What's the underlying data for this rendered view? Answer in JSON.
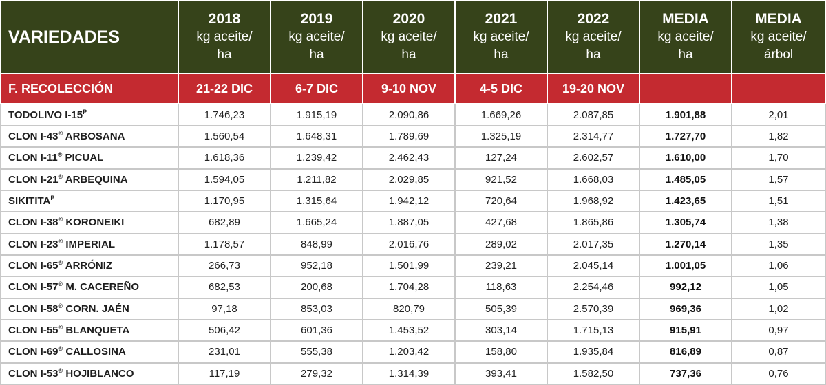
{
  "header": {
    "variety": "VARIEDADES",
    "years": [
      {
        "year": "2018",
        "unit_line1": "kg aceite/",
        "unit_line2": "ha"
      },
      {
        "year": "2019",
        "unit_line1": "kg aceite/",
        "unit_line2": "ha"
      },
      {
        "year": "2020",
        "unit_line1": "kg aceite/",
        "unit_line2": "ha"
      },
      {
        "year": "2021",
        "unit_line1": "kg aceite/",
        "unit_line2": "ha"
      },
      {
        "year": "2022",
        "unit_line1": "kg aceite/",
        "unit_line2": "ha"
      }
    ],
    "mean_ha": {
      "title": "MEDIA",
      "unit_line1": "kg aceite/",
      "unit_line2": "ha"
    },
    "mean_tree": {
      "title": "MEDIA",
      "unit_line1": "kg aceite/",
      "unit_line2": "árbol"
    }
  },
  "harvest": {
    "label": "F. RECOLECCIÓN",
    "dates": [
      "21-22 DIC",
      "6-7 DIC",
      "9-10 NOV",
      "4-5 DIC",
      "19-20 NOV",
      "",
      ""
    ]
  },
  "colors": {
    "header_bg": "#36431a",
    "harvest_bg": "#c42a30",
    "grid": "#c8c8c8"
  },
  "rows": [
    {
      "name": "TODOLIVO I-15",
      "mark": "P",
      "suffix": "",
      "values": [
        "1.746,23",
        "1.915,19",
        "2.090,86",
        "1.669,26",
        "2.087,85"
      ],
      "mean_ha": "1.901,88",
      "mean_tree": "2,01"
    },
    {
      "name": "CLON I-43",
      "mark": "®",
      "suffix": " ARBOSANA",
      "values": [
        "1.560,54",
        "1.648,31",
        "1.789,69",
        "1.325,19",
        "2.314,77"
      ],
      "mean_ha": "1.727,70",
      "mean_tree": "1,82"
    },
    {
      "name": "CLON I-11",
      "mark": "®",
      "suffix": " PICUAL",
      "values": [
        "1.618,36",
        "1.239,42",
        "2.462,43",
        "127,24",
        "2.602,57"
      ],
      "mean_ha": "1.610,00",
      "mean_tree": "1,70"
    },
    {
      "name": "CLON I-21",
      "mark": "®",
      "suffix": " ARBEQUINA",
      "values": [
        "1.594,05",
        "1.211,82",
        "2.029,85",
        "921,52",
        "1.668,03"
      ],
      "mean_ha": "1.485,05",
      "mean_tree": "1,57"
    },
    {
      "name": "SIKITITA",
      "mark": "P",
      "suffix": "",
      "values": [
        "1.170,95",
        "1.315,64",
        "1.942,12",
        "720,64",
        "1.968,92"
      ],
      "mean_ha": "1.423,65",
      "mean_tree": "1,51"
    },
    {
      "name": "CLON I-38",
      "mark": "®",
      "suffix": " KORONEIKI",
      "values": [
        "682,89",
        "1.665,24",
        "1.887,05",
        "427,68",
        "1.865,86"
      ],
      "mean_ha": "1.305,74",
      "mean_tree": "1,38"
    },
    {
      "name": "CLON I-23",
      "mark": "®",
      "suffix": " IMPERIAL",
      "values": [
        "1.178,57",
        "848,99",
        "2.016,76",
        "289,02",
        "2.017,35"
      ],
      "mean_ha": "1.270,14",
      "mean_tree": "1,35"
    },
    {
      "name": "CLON I-65",
      "mark": "®",
      "suffix": " ARRÓNIZ",
      "values": [
        "266,73",
        "952,18",
        "1.501,99",
        "239,21",
        "2.045,14"
      ],
      "mean_ha": "1.001,05",
      "mean_tree": "1,06"
    },
    {
      "name": "CLON I-57",
      "mark": "®",
      "suffix": " M. CACEREÑO",
      "values": [
        "682,53",
        "200,68",
        "1.704,28",
        "118,63",
        "2.254,46"
      ],
      "mean_ha": "992,12",
      "mean_tree": "1,05"
    },
    {
      "name": "CLON I-58",
      "mark": "®",
      "suffix": " CORN. JAÉN",
      "values": [
        "97,18",
        "853,03",
        "820,79",
        "505,39",
        "2.570,39"
      ],
      "mean_ha": "969,36",
      "mean_tree": "1,02"
    },
    {
      "name": "CLON I-55",
      "mark": "®",
      "suffix": " BLANQUETA",
      "values": [
        "506,42",
        "601,36",
        "1.453,52",
        "303,14",
        "1.715,13"
      ],
      "mean_ha": "915,91",
      "mean_tree": "0,97"
    },
    {
      "name": "CLON I-69",
      "mark": "®",
      "suffix": " CALLOSINA",
      "values": [
        "231,01",
        "555,38",
        "1.203,42",
        "158,80",
        "1.935,84"
      ],
      "mean_ha": "816,89",
      "mean_tree": "0,87"
    },
    {
      "name": "CLON I-53",
      "mark": "®",
      "suffix": " HOJIBLANCO",
      "values": [
        "117,19",
        "279,32",
        "1.314,39",
        "393,41",
        "1.582,50"
      ],
      "mean_ha": "737,36",
      "mean_tree": "0,76"
    }
  ]
}
